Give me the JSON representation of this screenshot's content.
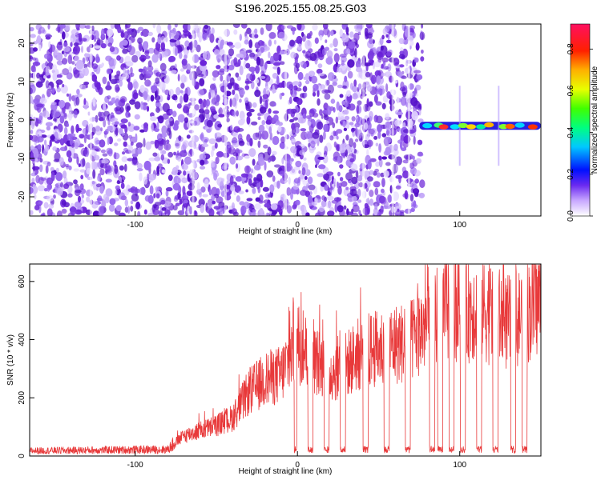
{
  "title": "S196.2025.155.08.25.G03",
  "colors": {
    "noise": "#7a3ae0",
    "line": "#e8393a",
    "frame": "#000000"
  },
  "chart_data": [
    {
      "type": "heatmap",
      "xlabel": "Height of straight line (km)",
      "ylabel": "Frequency (Hz)",
      "xlim": [
        -165,
        150
      ],
      "ylim": [
        -25,
        25
      ],
      "xticks": [
        -100,
        0,
        100
      ],
      "yticks": [
        -20,
        -10,
        0,
        10,
        20
      ],
      "colorbar": {
        "label": "Normalized spectral amplitude",
        "ticks": [
          "0.0",
          "0.2",
          "0.4",
          "0.6",
          "0.8"
        ],
        "range": [
          0,
          0.92
        ]
      },
      "signal_band": {
        "x_start": 75,
        "x_end": 150,
        "frequency": -1.5
      }
    },
    {
      "type": "line",
      "xlabel": "Height of straight line (km)",
      "ylabel": "SNR (10 * v/v)",
      "xlim": [
        -165,
        150
      ],
      "ylim": [
        0,
        660
      ],
      "xticks": [
        -100,
        0,
        100
      ],
      "yticks": [
        0,
        200,
        400,
        600
      ],
      "series": [
        {
          "values_summary": [
            [
              -165,
              20
            ],
            [
              -80,
              25
            ],
            [
              -70,
              80
            ],
            [
              -50,
              120
            ],
            [
              -40,
              150
            ],
            [
              -30,
              250
            ],
            [
              -20,
              300
            ],
            [
              -10,
              320
            ],
            [
              0,
              450
            ],
            [
              10,
              380
            ],
            [
              20,
              330
            ],
            [
              30,
              360
            ],
            [
              40,
              410
            ],
            [
              50,
              420
            ],
            [
              60,
              440
            ],
            [
              70,
              450
            ],
            [
              80,
              520
            ],
            [
              90,
              580
            ],
            [
              100,
              560
            ],
            [
              110,
              590
            ],
            [
              120,
              560
            ],
            [
              130,
              520
            ],
            [
              140,
              560
            ],
            [
              150,
              620
            ]
          ]
        }
      ]
    }
  ]
}
